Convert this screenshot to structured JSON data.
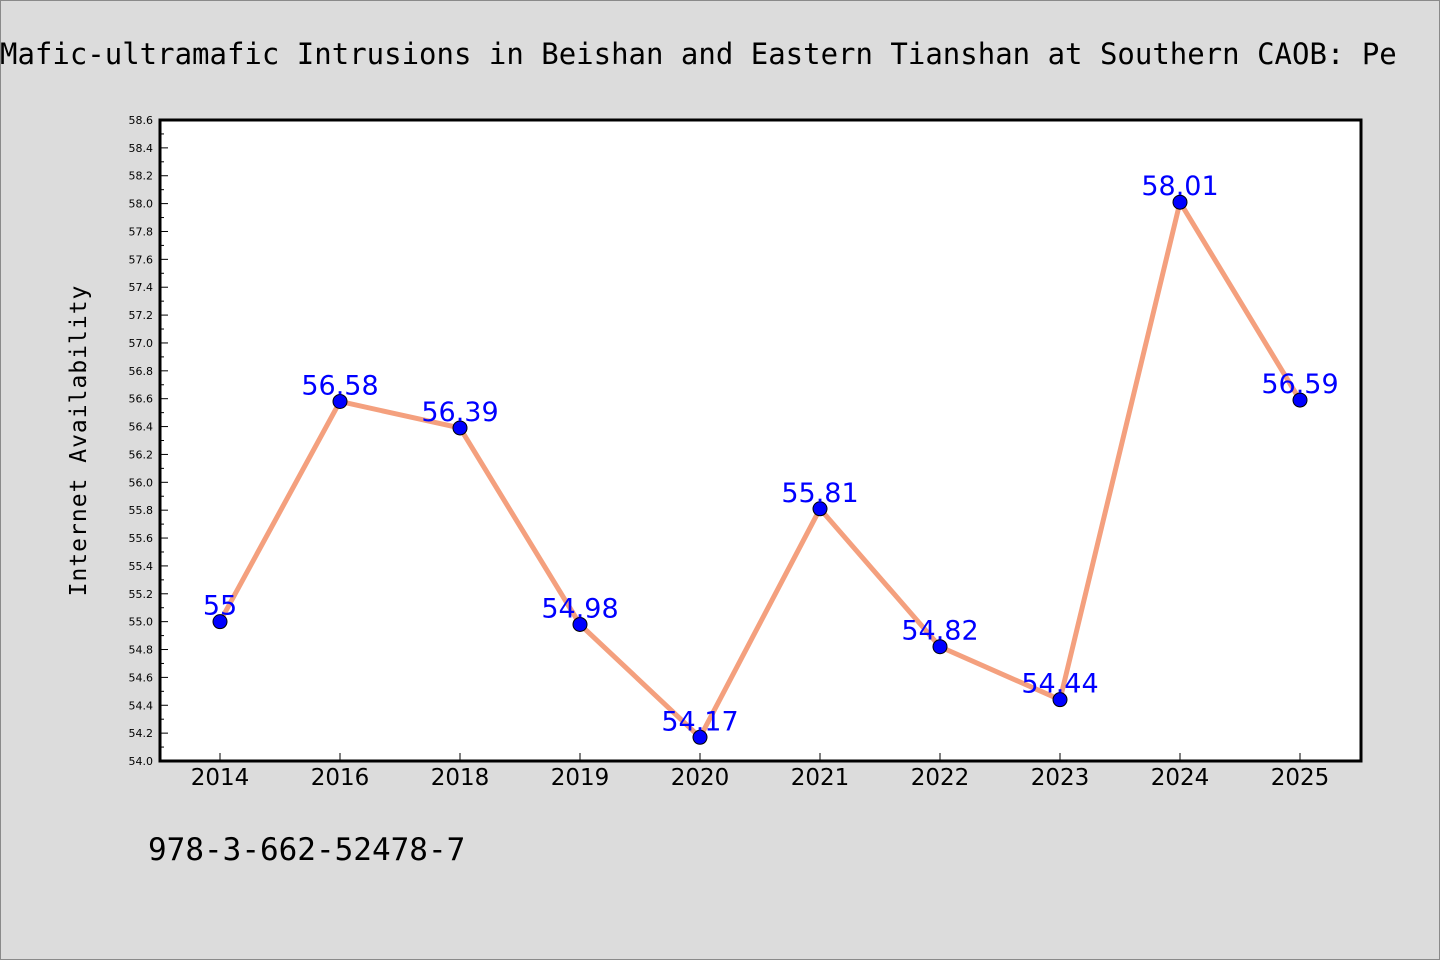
{
  "page": {
    "title": "Mafic-ultramafic Intrusions in Beishan and Eastern Tianshan at Southern CAOB: Pe",
    "footer_code": "978-3-662-52478-7"
  },
  "colors": {
    "background": "#dcdcdc",
    "plot_background": "#ffffff",
    "line": "#f4a07e",
    "marker": "#0000ff",
    "data_label": "#0000ff"
  },
  "chart_data": {
    "type": "line",
    "title": "Mafic-ultramafic Intrusions in Beishan and Eastern Tianshan at Southern CAOB: Pe",
    "xlabel": "",
    "ylabel": "Internet Availability",
    "categories": [
      "2014",
      "2016",
      "2018",
      "2019",
      "2020",
      "2021",
      "2022",
      "2023",
      "2024",
      "2025"
    ],
    "series": [
      {
        "values": [
          55,
          56.58,
          56.39,
          54.98,
          54.17,
          55.81,
          54.82,
          54.44,
          58.01,
          56.59
        ],
        "data_labels": [
          "55",
          "56.58",
          "56.39",
          "54.98",
          "54.17",
          "55.81",
          "54.82",
          "54.44",
          "58.01",
          "56.59"
        ]
      }
    ],
    "ylim": [
      54.0,
      58.6
    ],
    "yticks": [
      "54.0",
      "54.2",
      "54.4",
      "54.6",
      "54.8",
      "55.0",
      "55.2",
      "55.4",
      "55.6",
      "55.8",
      "56.0",
      "56.2",
      "56.4",
      "56.6",
      "56.8",
      "57.0",
      "57.2",
      "57.4",
      "57.6",
      "57.8",
      "58.0",
      "58.2",
      "58.4",
      "58.6"
    ],
    "grid": false,
    "legend": "none"
  }
}
